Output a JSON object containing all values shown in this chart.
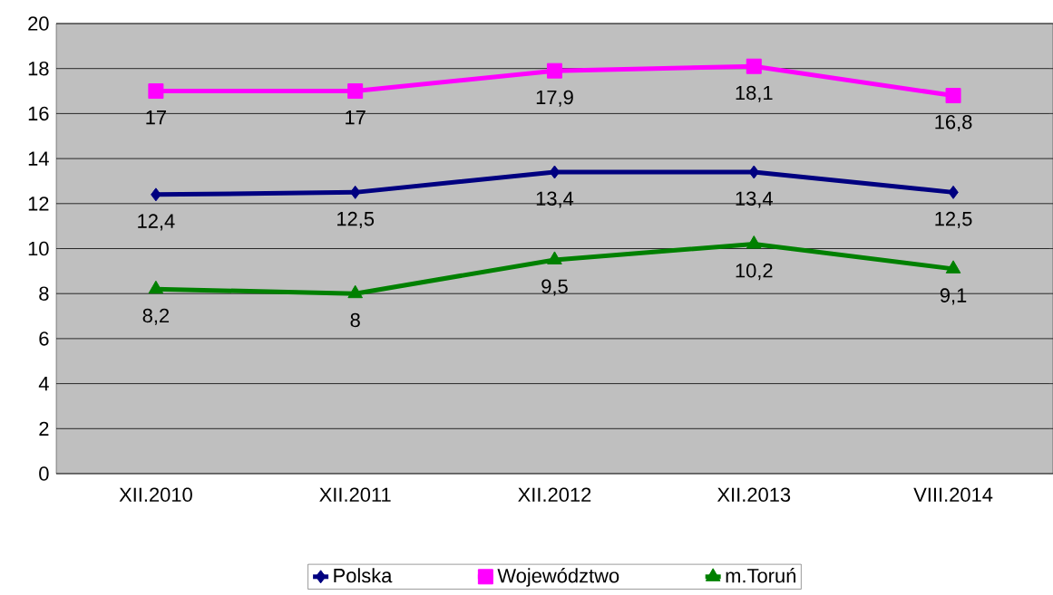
{
  "chart_data": {
    "type": "line",
    "categories": [
      "XII.2010",
      "XII.2011",
      "XII.2012",
      "XII.2013",
      "VIII.2014"
    ],
    "ylim": [
      0,
      20
    ],
    "yticks": [
      0,
      2,
      4,
      6,
      8,
      10,
      12,
      14,
      16,
      18,
      20
    ],
    "grid": "y",
    "legend": "bottom",
    "line_style": "solid",
    "series": [
      {
        "name": "Polska",
        "color": "#000080",
        "marker": "diamond",
        "values": [
          12.4,
          12.5,
          13.4,
          13.4,
          12.5
        ],
        "value_labels": [
          "12,4",
          "12,5",
          "13,4",
          "13,4",
          "12,5"
        ]
      },
      {
        "name": "Województwo",
        "color": "#ff00ff",
        "marker": "square",
        "values": [
          17,
          17,
          17.9,
          18.1,
          16.8
        ],
        "value_labels": [
          "17",
          "17",
          "17,9",
          "18,1",
          "16,8"
        ]
      },
      {
        "name": "m.Toruń",
        "color": "#008000",
        "marker": "triangle",
        "values": [
          8.2,
          8,
          9.5,
          10.2,
          9.1
        ],
        "value_labels": [
          "8,2",
          "8",
          "9,5",
          "10,2",
          "9,1"
        ]
      }
    ]
  }
}
